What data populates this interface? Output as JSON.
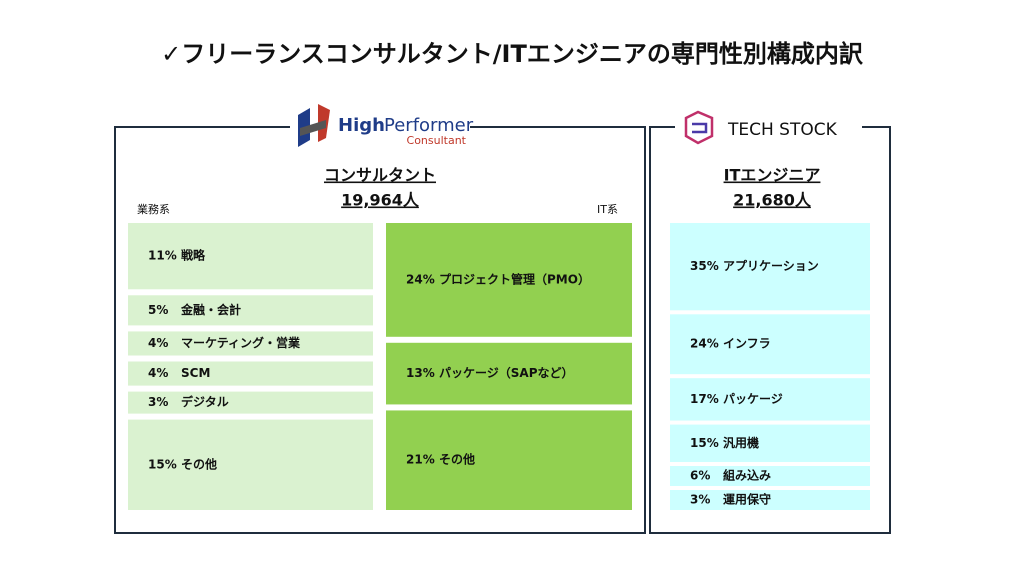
{
  "title": "✓フリーランスコンサルタント/ITエンジニアの専門性別構成内訳",
  "left": {
    "logo": {
      "brand_first": "High",
      "brand_second": "Performer",
      "sub": "Consultant"
    },
    "heading": "コンサルタント",
    "count": "19,964人",
    "group_labels": [
      "業務系",
      "IT系"
    ],
    "business": [
      {
        "pct": "11%",
        "name": "戦略"
      },
      {
        "pct": "5%",
        "name": "金融・会計"
      },
      {
        "pct": "4%",
        "name": "マーケティング・営業"
      },
      {
        "pct": "4%",
        "name": "SCM"
      },
      {
        "pct": "3%",
        "name": "デジタル"
      },
      {
        "pct": "15%",
        "name": "その他"
      }
    ],
    "it": [
      {
        "pct": "24%",
        "name": "プロジェクト管理（PMO）"
      },
      {
        "pct": "13%",
        "name": "パッケージ（SAPなど）"
      },
      {
        "pct": "21%",
        "name": "その他"
      }
    ]
  },
  "right": {
    "logo": "TECH STOCK",
    "heading": "ITエンジニア",
    "count": "21,680人",
    "items": [
      {
        "pct": "35%",
        "name": "アプリケーション"
      },
      {
        "pct": "24%",
        "name": "インフラ"
      },
      {
        "pct": "17%",
        "name": "パッケージ"
      },
      {
        "pct": "15%",
        "name": "汎用機"
      },
      {
        "pct": "6%",
        "name": "組み込み"
      },
      {
        "pct": "3%",
        "name": "運用保守"
      }
    ]
  }
}
